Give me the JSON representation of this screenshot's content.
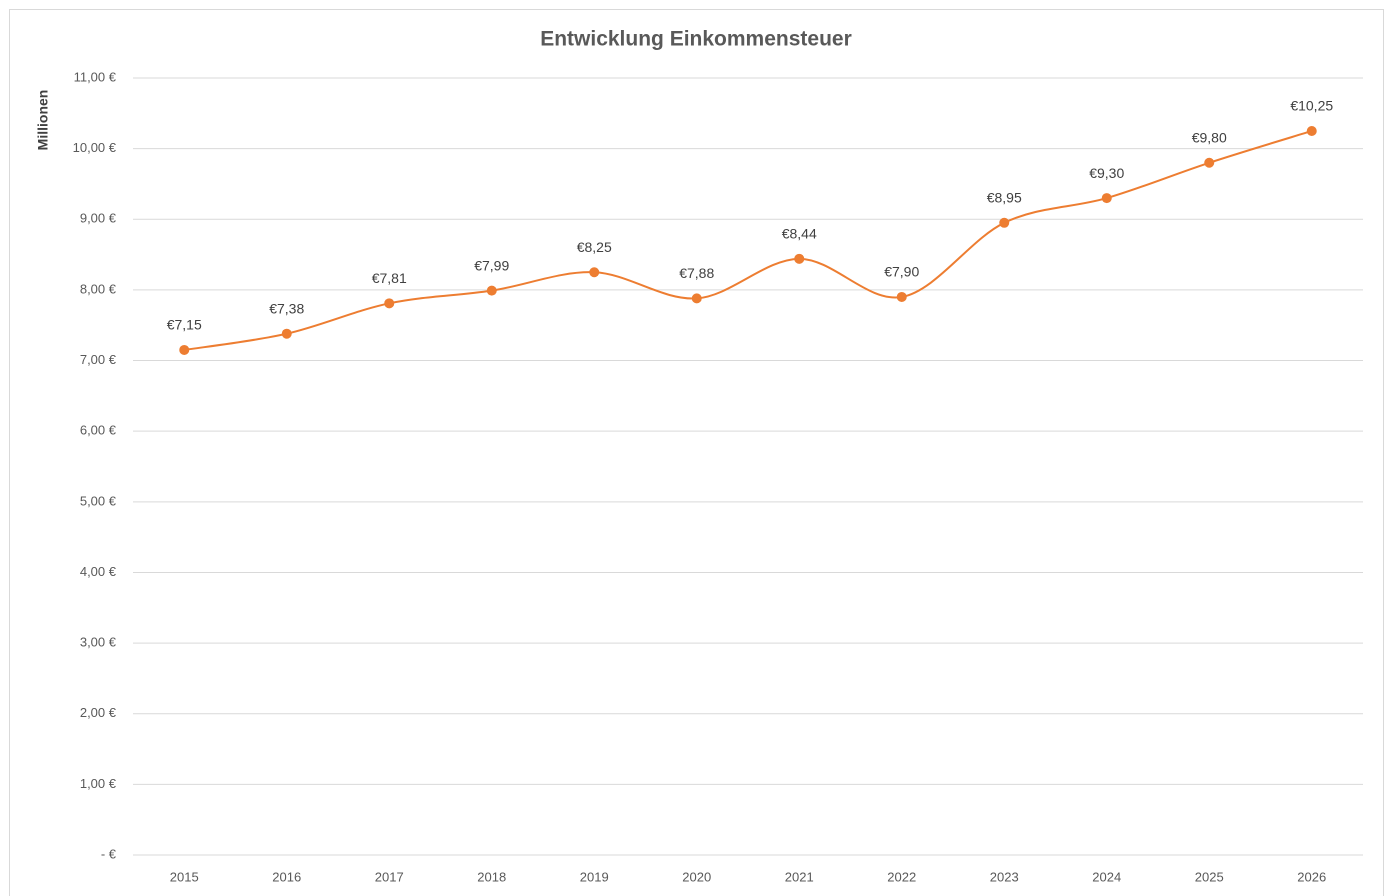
{
  "chart_data": {
    "type": "line",
    "title": "Entwicklung Einkommensteuer",
    "y_label": "Millionen",
    "categories": [
      "2015",
      "2016",
      "2017",
      "2018",
      "2019",
      "2020",
      "2021",
      "2022",
      "2023",
      "2024",
      "2025",
      "2026"
    ],
    "series": [
      {
        "name": "Einkommensteuer",
        "color": "#ed7d31",
        "values": [
          7.15,
          7.38,
          7.81,
          7.99,
          8.25,
          7.88,
          8.44,
          7.9,
          8.95,
          9.3,
          9.8,
          10.25
        ],
        "value_labels": [
          "€7,15",
          "€7,38",
          "€7,81",
          "€7,99",
          "€8,25",
          "€7,88",
          "€8,44",
          "€7,90",
          "€8,95",
          "€9,30",
          "€9,80",
          "€10,25"
        ]
      }
    ],
    "ylim": [
      0,
      11
    ],
    "yticks": [
      {
        "value": 0,
        "label": "-   €"
      },
      {
        "value": 1,
        "label": "1,00 €"
      },
      {
        "value": 2,
        "label": "2,00 €"
      },
      {
        "value": 3,
        "label": "3,00 €"
      },
      {
        "value": 4,
        "label": "4,00 €"
      },
      {
        "value": 5,
        "label": "5,00 €"
      },
      {
        "value": 6,
        "label": "6,00 €"
      },
      {
        "value": 7,
        "label": "7,00 €"
      },
      {
        "value": 8,
        "label": "8,00 €"
      },
      {
        "value": 9,
        "label": "9,00 €"
      },
      {
        "value": 10,
        "label": "10,00 €"
      },
      {
        "value": 11,
        "label": "11,00 €"
      }
    ],
    "grid": true,
    "smooth": true
  }
}
